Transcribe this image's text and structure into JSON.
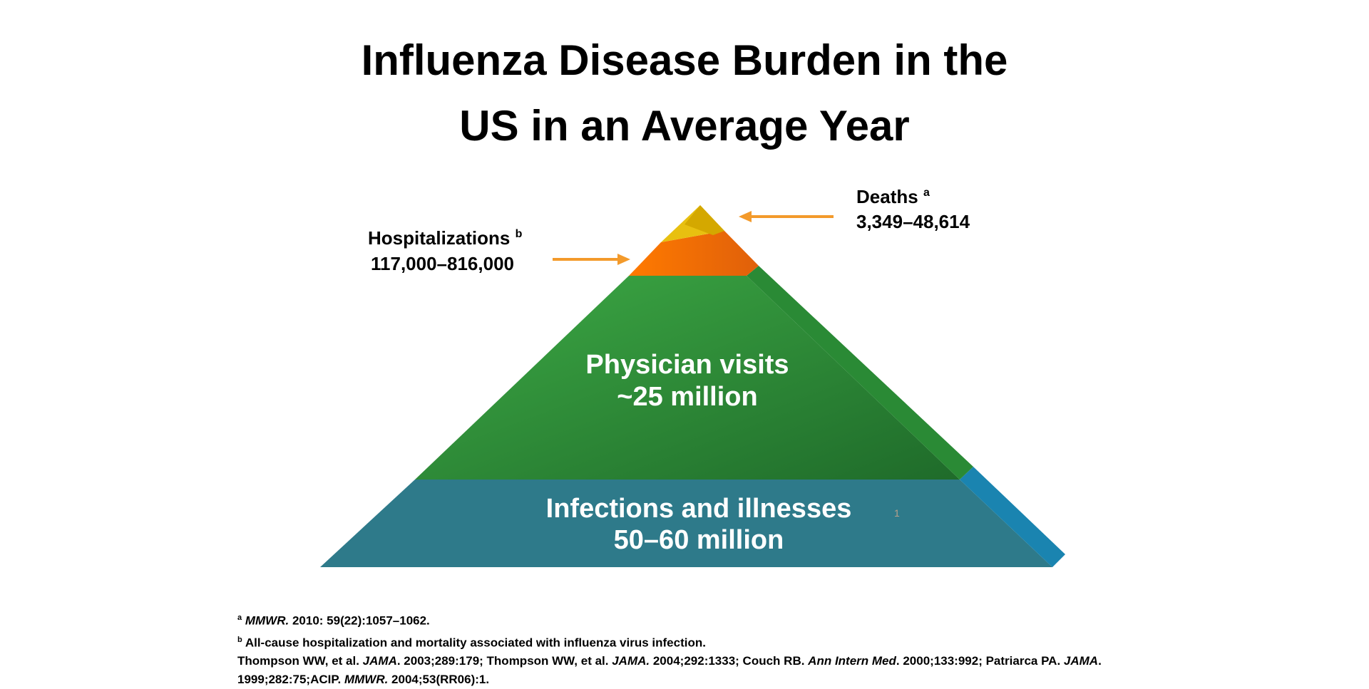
{
  "title": {
    "lines": [
      "Influenza Disease Burden in the",
      "US in an Average Year"
    ]
  },
  "labels": {
    "deaths": {
      "name": "Deaths",
      "note": "a",
      "value": "3,349–48,614"
    },
    "hospitalizations": {
      "name": "Hospitalizations",
      "note": "b",
      "value": "117,000–816,000"
    },
    "physician_visits": {
      "name": "Physician visits",
      "value": "~25 million"
    },
    "infections": {
      "name": "Infections and illnesses",
      "value": "50–60 million"
    },
    "slide_number": "1"
  },
  "footnotes": [
    {
      "marker": "a",
      "parts": [
        {
          "text": "MMWR.",
          "italic": true
        },
        {
          "text": " 2010: 59(22):1057–1062.",
          "italic": false
        }
      ]
    },
    {
      "marker": "b",
      "parts": [
        {
          "text": "All-cause hospitalization and mortality associated with influenza virus infection.",
          "italic": false
        }
      ]
    },
    {
      "parts": [
        {
          "text": "Thompson WW, et al. ",
          "italic": false
        },
        {
          "text": "JAMA",
          "italic": true
        },
        {
          "text": ". 2003;289:179; Thompson WW, et al. ",
          "italic": false
        },
        {
          "text": "JAMA.",
          "italic": true
        },
        {
          "text": " 2004;292:1333; Couch RB. ",
          "italic": false
        },
        {
          "text": "Ann Intern Med",
          "italic": true
        },
        {
          "text": ". 2000;133:992; Patriarca PA. ",
          "italic": false
        },
        {
          "text": "JAMA",
          "italic": true
        },
        {
          "text": ". 1999;282:75;ACIP. ",
          "italic": false
        },
        {
          "text": "MMWR.",
          "italic": true
        },
        {
          "text": " 2004;53(RR06):1.",
          "italic": false
        }
      ]
    }
  ]
}
